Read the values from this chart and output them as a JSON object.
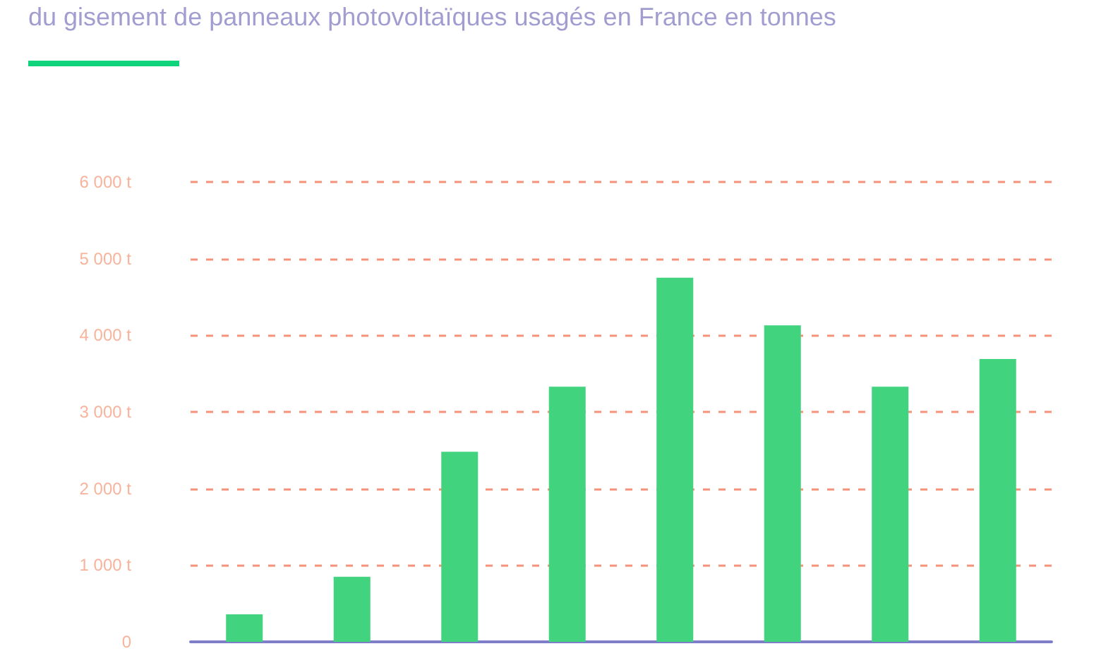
{
  "chart_data": {
    "type": "bar",
    "title": "du gisement de panneaux photovoltaïques usagés en France en tonnes",
    "categories": [
      null,
      null,
      null,
      null,
      null,
      null,
      null,
      null
    ],
    "values": [
      360,
      850,
      2480,
      3330,
      4750,
      4130,
      3330,
      3690
    ],
    "color": "#41d37e",
    "ylim": [
      0,
      6000
    ],
    "yticks": [
      {
        "value": 0,
        "label": "0"
      },
      {
        "value": 1000,
        "label": "1 000 t"
      },
      {
        "value": 2000,
        "label": "2 000 t"
      },
      {
        "value": 3000,
        "label": "3 000 t"
      },
      {
        "value": 4000,
        "label": "4 000 t"
      },
      {
        "value": 5000,
        "label": "5 000 t"
      },
      {
        "value": 6000,
        "label": "6 000 t"
      }
    ],
    "grid": "y"
  }
}
